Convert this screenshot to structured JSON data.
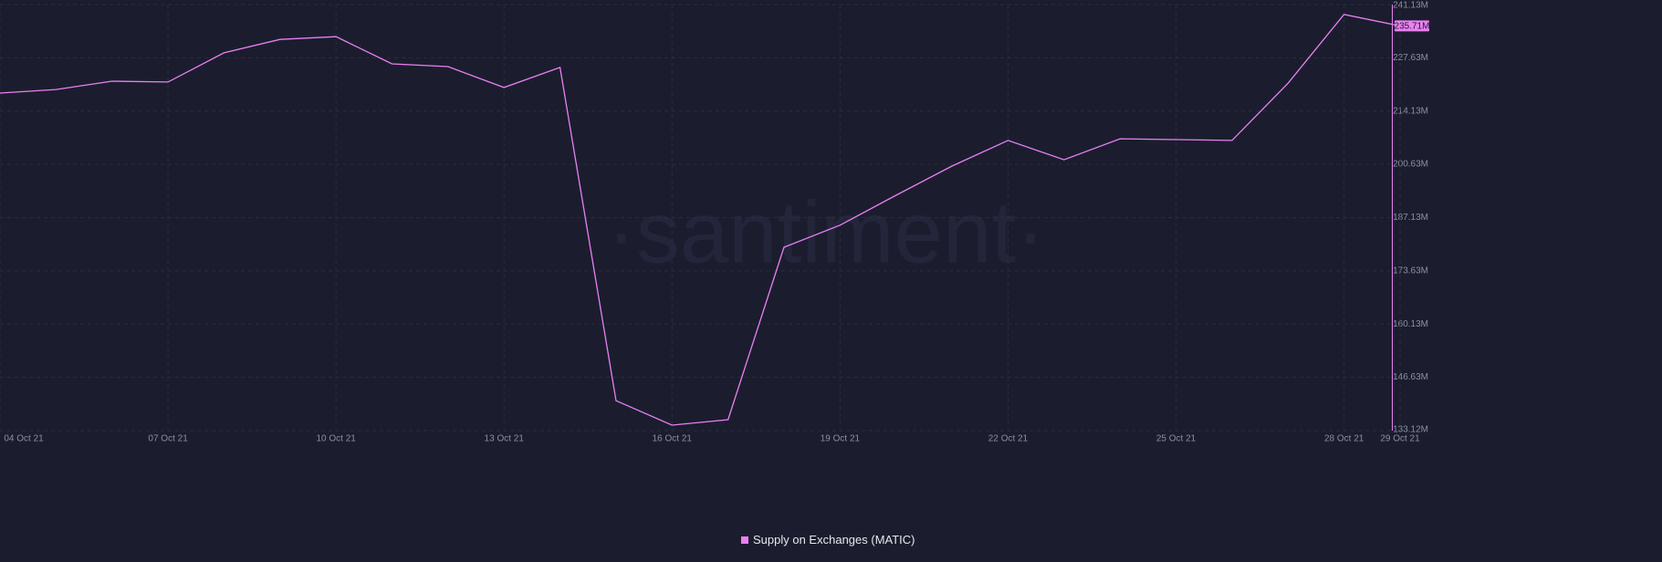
{
  "chart_data": {
    "type": "line",
    "watermark": "·santiment·",
    "x": [
      "04 Oct 21",
      null,
      null,
      "07 Oct 21",
      null,
      null,
      "10 Oct 21",
      null,
      null,
      "13 Oct 21",
      null,
      null,
      "16 Oct 21",
      null,
      null,
      "19 Oct 21",
      null,
      null,
      "22 Oct 21",
      null,
      null,
      "25 Oct 21",
      null,
      null,
      "28 Oct 21",
      "29 Oct 21"
    ],
    "series": [
      {
        "name": "Supply on Exchanges (MATIC)",
        "color": "#ea80f2",
        "values": [
          218.69,
          219.6,
          221.7,
          221.5,
          228.9,
          232.3,
          233.0,
          226.1,
          225.4,
          220.1,
          225.2,
          140.7,
          134.5,
          135.9,
          179.6,
          185.2,
          192.8,
          200.2,
          206.7,
          201.8,
          207.1,
          206.9,
          206.7,
          221.2,
          238.6,
          235.71
        ]
      }
    ],
    "current_value": {
      "value": 235.71,
      "label": "235.71M"
    },
    "ylim": [
      133.12,
      241.13
    ],
    "yticks": [
      {
        "value": 133.12,
        "label": "133.12M"
      },
      {
        "value": 146.63,
        "label": "146.63M"
      },
      {
        "value": 160.13,
        "label": "160.13M"
      },
      {
        "value": 173.63,
        "label": "173.63M"
      },
      {
        "value": 187.13,
        "label": "187.13M"
      },
      {
        "value": 200.63,
        "label": "200.63M"
      },
      {
        "value": 214.13,
        "label": "214.13M"
      },
      {
        "value": 227.63,
        "label": "227.63M"
      },
      {
        "value": 241.13,
        "label": "241.13M"
      }
    ],
    "grid": true
  }
}
